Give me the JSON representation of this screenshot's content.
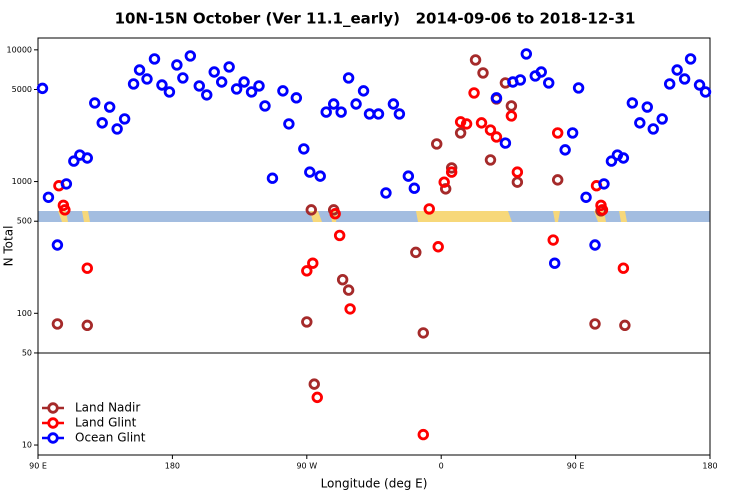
{
  "chart_data": {
    "type": "scatter",
    "title": "10N-15N October (Ver 11.1_early)   2014-09-06 to 2018-12-31",
    "x_label": "Longitude (deg E)",
    "y_label": "N Total",
    "xlim": [
      90,
      540
    ],
    "xticks": [
      {
        "value": 90,
        "label": "90 E"
      },
      {
        "value": 180,
        "label": "180"
      },
      {
        "value": 270,
        "label": "90 W"
      },
      {
        "value": 360,
        "label": "0"
      },
      {
        "value": 450,
        "label": "90 E"
      },
      {
        "value": 540,
        "label": "180"
      }
    ],
    "ylim": [
      8.4,
      12300
    ],
    "yticks": [
      10,
      50,
      100,
      500,
      1000,
      5000,
      10000
    ],
    "log_y": true,
    "legend": "lower left",
    "series": [
      {
        "name": "Land Nadir",
        "color": "#a52a2a",
        "x": [
          103,
          123,
          270,
          273,
          288,
          294,
          298,
          275,
          343,
          348,
          357,
          363,
          367,
          373,
          383,
          388,
          393,
          397,
          403,
          407,
          411,
          438,
          463,
          467,
          483
        ],
        "values": [
          83,
          81,
          86,
          610,
          610,
          180,
          150,
          29,
          290,
          71,
          1930,
          880,
          1270,
          2340,
          8380,
          6680,
          1460,
          4240,
          5610,
          3750,
          990,
          1030,
          83,
          600,
          81
        ]
      },
      {
        "name": "Land Glint",
        "color": "#ff0000",
        "x": [
          104,
          107,
          108,
          123,
          270,
          274,
          289,
          292,
          299,
          277,
          348,
          352,
          358,
          362,
          367,
          373,
          377,
          382,
          387,
          393,
          397,
          407,
          411,
          435,
          438,
          464,
          467,
          468,
          482
        ],
        "values": [
          930,
          660,
          610,
          220,
          210,
          240,
          570,
          390,
          108,
          23,
          12,
          620,
          320,
          990,
          1180,
          2840,
          2740,
          4710,
          2790,
          2460,
          2180,
          3150,
          1180,
          360,
          2340,
          930,
          660,
          610,
          220
        ]
      },
      {
        "name": "Ocean Glint",
        "color": "#0000ff",
        "x": [
          93,
          97,
          103,
          109,
          114,
          118,
          123,
          128,
          133,
          138,
          143,
          148,
          154,
          158,
          163,
          168,
          173,
          178,
          183,
          187,
          192,
          198,
          203,
          208,
          213,
          218,
          223,
          228,
          233,
          238,
          242,
          247,
          254,
          258,
          263,
          268,
          272,
          279,
          283,
          288,
          293,
          298,
          303,
          308,
          312,
          318,
          323,
          328,
          332,
          338,
          342,
          397,
          403,
          408,
          413,
          417,
          423,
          427,
          432,
          436,
          443,
          448,
          452,
          457,
          463,
          469,
          474,
          478,
          482,
          488,
          493,
          498,
          502,
          508,
          513,
          518,
          523,
          527,
          533,
          537
        ],
        "values": [
          5100,
          760,
          330,
          960,
          1430,
          1590,
          1510,
          3950,
          2790,
          3680,
          2510,
          2990,
          5510,
          7030,
          6010,
          8530,
          5410,
          4790,
          7680,
          6120,
          8990,
          5320,
          4550,
          6790,
          5700,
          7420,
          5050,
          5700,
          4790,
          5320,
          3750,
          1060,
          4880,
          2740,
          4320,
          1770,
          1180,
          1100,
          3370,
          3880,
          3370,
          6120,
          3880,
          4880,
          3260,
          3260,
          820,
          3880,
          3260,
          1100,
          890,
          4320,
          1960,
          5700,
          5910,
          9310,
          6340,
          6790,
          5610,
          240,
          1740,
          2340,
          5140,
          760,
          330,
          960,
          1430,
          1590,
          1510,
          3950,
          2790,
          3680,
          2510,
          2990,
          5510,
          7030,
          6010,
          8530,
          5410,
          4790
        ]
      }
    ]
  }
}
